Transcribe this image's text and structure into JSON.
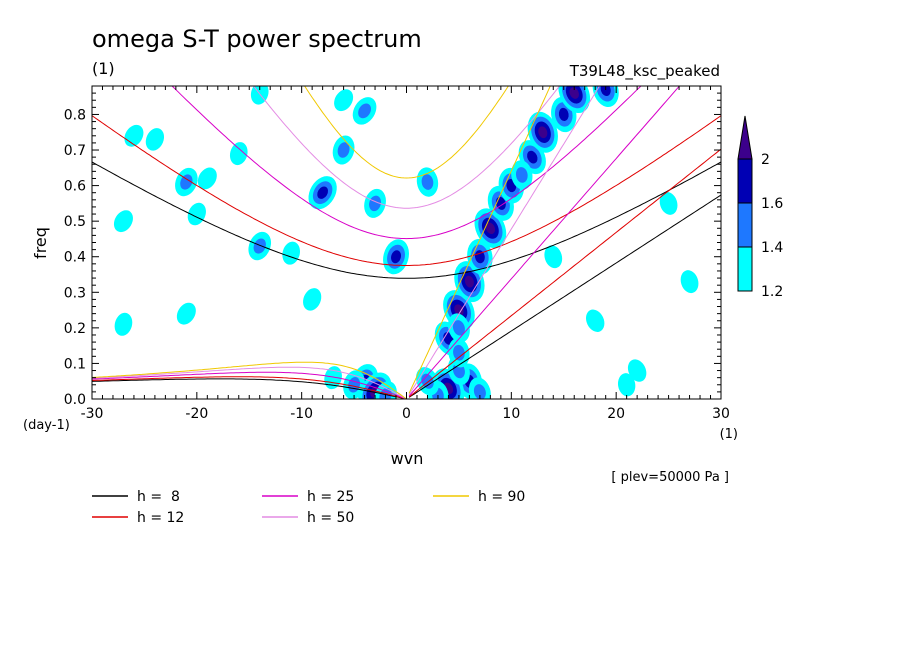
{
  "chart_data": {
    "type": "heatmap",
    "title": "omega S-T power spectrum",
    "title_unit": "(1)",
    "run_label": "T39L48_ksc_peaked",
    "xlabel": "wvn",
    "ylabel": "freq",
    "x_unit": "(1)",
    "y_unit": "(day-1)",
    "level_note": "[ plev=50000 Pa ]",
    "xlim": [
      -30,
      30
    ],
    "ylim": [
      0,
      0.88
    ],
    "x_ticks": [
      -30,
      -20,
      -10,
      0,
      10,
      20,
      30
    ],
    "y_ticks": [
      0.0,
      0.1,
      0.2,
      0.3,
      0.4,
      0.5,
      0.6,
      0.7,
      0.8
    ],
    "x_tick_labels": [
      "-30",
      "-20",
      "-10",
      "0",
      "10",
      "20",
      "30"
    ],
    "y_tick_labels": [
      "0.0",
      "0.1",
      "0.2",
      "0.3",
      "0.4",
      "0.5",
      "0.6",
      "0.7",
      "0.8"
    ],
    "colorbar": {
      "levels": [
        1.2,
        1.4,
        1.6,
        2
      ],
      "labels": [
        "1.2",
        "1.4",
        "1.6",
        "2"
      ],
      "colors": [
        "#00ffff",
        "#1e78ff",
        "#0000b4",
        "#3c008c"
      ]
    },
    "dispersion_curves": [
      {
        "name": "h =  8",
        "h": 8,
        "color": "#000000"
      },
      {
        "name": "h = 12",
        "h": 12,
        "color": "#e00000"
      },
      {
        "name": "h = 25",
        "h": 25,
        "color": "#d800c8"
      },
      {
        "name": "h = 50",
        "h": 50,
        "color": "#e48ce4"
      },
      {
        "name": "h = 90",
        "h": 90,
        "color": "#f0c800"
      }
    ],
    "blobs": [
      {
        "x": 5,
        "y": 0.25,
        "level": 4
      },
      {
        "x": 6,
        "y": 0.33,
        "level": 4
      },
      {
        "x": 7,
        "y": 0.4,
        "level": 3
      },
      {
        "x": 8,
        "y": 0.48,
        "level": 4
      },
      {
        "x": 9,
        "y": 0.55,
        "level": 3
      },
      {
        "x": 10,
        "y": 0.6,
        "level": 3
      },
      {
        "x": 12,
        "y": 0.68,
        "level": 3
      },
      {
        "x": 13,
        "y": 0.75,
        "level": 4
      },
      {
        "x": 15,
        "y": 0.8,
        "level": 3
      },
      {
        "x": 16,
        "y": 0.86,
        "level": 4
      },
      {
        "x": 19,
        "y": 0.87,
        "level": 3
      },
      {
        "x": 11,
        "y": 0.63,
        "level": 2
      },
      {
        "x": 4,
        "y": 0.17,
        "level": 3
      },
      {
        "x": 5,
        "y": 0.2,
        "level": 2
      },
      {
        "x": 6,
        "y": 0.05,
        "level": 3
      },
      {
        "x": 4,
        "y": 0.03,
        "level": 4
      },
      {
        "x": 5,
        "y": 0.08,
        "level": 2
      },
      {
        "x": 3,
        "y": 0.01,
        "level": 2
      },
      {
        "x": 2,
        "y": 0.05,
        "level": 2
      },
      {
        "x": 7,
        "y": 0.02,
        "level": 2
      },
      {
        "x": 5,
        "y": 0.13,
        "level": 2
      },
      {
        "x": -1,
        "y": 0.4,
        "level": 3
      },
      {
        "x": -4,
        "y": 0.05,
        "level": 3
      },
      {
        "x": -3,
        "y": 0.02,
        "level": 4
      },
      {
        "x": -5,
        "y": 0.04,
        "level": 2
      },
      {
        "x": -2,
        "y": 0.01,
        "level": 2
      },
      {
        "x": -8,
        "y": 0.58,
        "level": 3
      },
      {
        "x": -6,
        "y": 0.7,
        "level": 2
      },
      {
        "x": -14,
        "y": 0.43,
        "level": 2
      },
      {
        "x": -4,
        "y": 0.81,
        "level": 2
      },
      {
        "x": -3,
        "y": 0.55,
        "level": 2
      },
      {
        "x": -21,
        "y": 0.61,
        "level": 2
      },
      {
        "x": 2,
        "y": 0.61,
        "level": 2
      },
      {
        "x": -16,
        "y": 0.69,
        "level": 1
      },
      {
        "x": -24,
        "y": 0.73,
        "level": 1
      },
      {
        "x": -27,
        "y": 0.5,
        "level": 1
      },
      {
        "x": -11,
        "y": 0.41,
        "level": 1
      },
      {
        "x": -9,
        "y": 0.28,
        "level": 1
      },
      {
        "x": -21,
        "y": 0.24,
        "level": 1
      },
      {
        "x": 22,
        "y": 0.08,
        "level": 1
      },
      {
        "x": 27,
        "y": 0.33,
        "level": 1
      },
      {
        "x": -26,
        "y": 0.74,
        "level": 1
      },
      {
        "x": -14,
        "y": 0.86,
        "level": 1
      },
      {
        "x": -20,
        "y": 0.52,
        "level": 1
      },
      {
        "x": -6,
        "y": 0.84,
        "level": 1
      },
      {
        "x": 18,
        "y": 0.22,
        "level": 1
      },
      {
        "x": 25,
        "y": 0.55,
        "level": 1
      },
      {
        "x": -19,
        "y": 0.62,
        "level": 1
      },
      {
        "x": -27,
        "y": 0.21,
        "level": 1
      },
      {
        "x": 14,
        "y": 0.4,
        "level": 1
      },
      {
        "x": 21,
        "y": 0.04,
        "level": 1
      },
      {
        "x": -7,
        "y": 0.06,
        "level": 1
      }
    ]
  },
  "legend": [
    {
      "label": "h =  8",
      "color": "#000000"
    },
    {
      "label": "h = 12",
      "color": "#e00000"
    },
    {
      "label": "h = 25",
      "color": "#d800c8"
    },
    {
      "label": "h = 50",
      "color": "#e48ce4"
    },
    {
      "label": "h = 90",
      "color": "#f0c800"
    }
  ]
}
